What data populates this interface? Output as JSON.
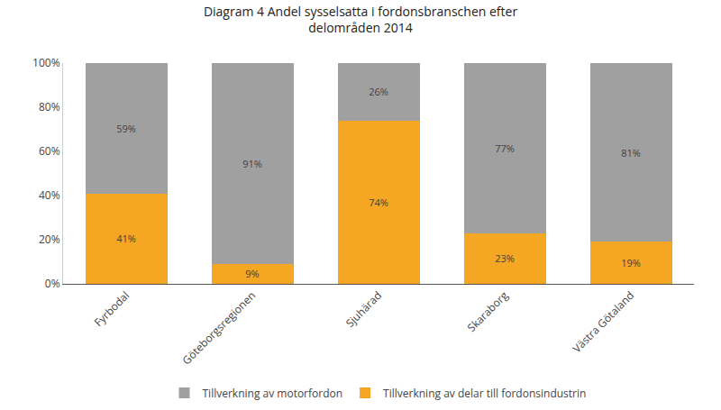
{
  "chart_data": {
    "type": "bar",
    "title": "Diagram 4 Andel sysselsatta i fordonsbranschen efter\ndelområden 2014",
    "categories": [
      "Fyrbodal",
      "Göteborgsregionen",
      "Sjuhärad",
      "Skaraborg",
      "Västra Götaland"
    ],
    "series": [
      {
        "name": "Tillverkning av delar till fordonsindustrin",
        "color": "#F5A623",
        "values": [
          41,
          9,
          74,
          23,
          19
        ],
        "value_labels": [
          "41%",
          "9%",
          "74%",
          "23%",
          "19%"
        ]
      },
      {
        "name": "Tillverkning av motorfordon",
        "color": "#A0A0A0",
        "values": [
          59,
          91,
          26,
          77,
          81
        ],
        "value_labels": [
          "59%",
          "91%",
          "26%",
          "77%",
          "81%"
        ]
      }
    ],
    "stacked": true,
    "data_labels": true,
    "ylim": [
      0,
      100
    ],
    "yticks": [
      {
        "value": 0,
        "label": "0%"
      },
      {
        "value": 20,
        "label": "20%"
      },
      {
        "value": 40,
        "label": "40%"
      },
      {
        "value": 60,
        "label": "60%"
      },
      {
        "value": 80,
        "label": "80%"
      },
      {
        "value": 100,
        "label": "100%"
      }
    ],
    "grid": false,
    "legend": "bottom"
  }
}
